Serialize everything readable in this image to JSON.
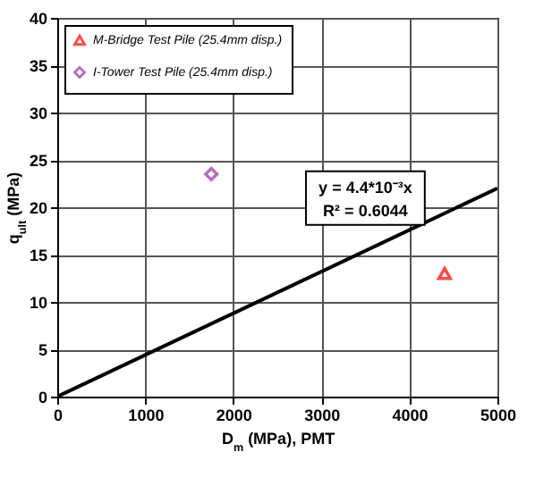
{
  "chart_data": {
    "type": "scatter",
    "xlabel": "D$_{m}$ (MPa), PMT",
    "ylabel": "q$_{ult}$ (MPa)",
    "xlim": [
      0,
      5000
    ],
    "ylim": [
      0,
      40
    ],
    "xticks": [
      0,
      1000,
      2000,
      3000,
      4000,
      5000
    ],
    "yticks": [
      0,
      5,
      10,
      15,
      20,
      25,
      30,
      35,
      40
    ],
    "grid": true,
    "legend": "top left",
    "series": [
      {
        "name": "M-Bridge Test Pile (25.4mm disp.)",
        "color": "#ff0000",
        "marker": "triangle",
        "x": [
          4400
        ],
        "values": [
          13
        ]
      },
      {
        "name": "I-Tower Test Pile (25.4mm disp.)",
        "color": "#993399",
        "marker": "diamond",
        "x": [
          1750
        ],
        "values": [
          23.5
        ]
      },
      {
        "type": "line",
        "color": "#000000",
        "x": [
          0,
          5000
        ],
        "values": [
          0,
          22
        ]
      }
    ],
    "annotations": [
      "y = 4.4*10⁻³x",
      "R² = 0.6044"
    ]
  }
}
